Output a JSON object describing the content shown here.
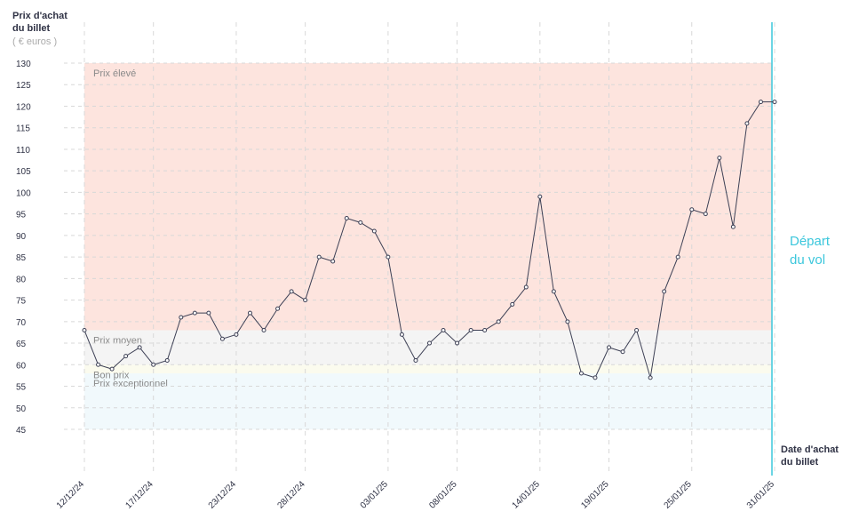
{
  "chart_data": {
    "type": "line",
    "y_title": "Prix d'achat du billet",
    "y_unit": "( € euros )",
    "x_title": "Date d'achat du billet",
    "annotation": "Départ du vol",
    "categories": [
      "12/12/24",
      null,
      null,
      null,
      null,
      "17/12/24",
      null,
      null,
      null,
      null,
      null,
      "23/12/24",
      null,
      null,
      null,
      null,
      "28/12/24",
      null,
      null,
      null,
      null,
      null,
      "03/01/25",
      null,
      null,
      null,
      null,
      "08/01/25",
      null,
      null,
      null,
      null,
      null,
      "14/01/25",
      null,
      null,
      null,
      null,
      "19/01/25",
      null,
      null,
      null,
      null,
      null,
      "25/01/25",
      null,
      null,
      null,
      null,
      null,
      "31/01/25"
    ],
    "values": [
      68,
      60,
      59,
      62,
      64,
      60,
      61,
      71,
      72,
      72,
      66,
      67,
      72,
      68,
      73,
      77,
      75,
      85,
      84,
      94,
      93,
      91,
      85,
      67,
      61,
      65,
      68,
      65,
      68,
      68,
      70,
      74,
      78,
      99,
      77,
      70,
      58,
      57,
      64,
      63,
      68,
      57,
      77,
      85,
      96,
      95,
      108,
      92,
      116,
      121,
      121
    ],
    "color": "#3d4055",
    "ylim": [
      45,
      130
    ],
    "yticks": [
      45,
      50,
      55,
      60,
      65,
      70,
      75,
      80,
      85,
      90,
      95,
      100,
      105,
      110,
      115,
      120,
      125,
      130
    ],
    "grid": true,
    "bands": [
      {
        "label": "Prix élevé",
        "from": 68,
        "to": 130,
        "color": "#fde4de"
      },
      {
        "label": "Prix moyen",
        "from": 60,
        "to": 68,
        "color": "#f4f4f4"
      },
      {
        "label": "Bon prix",
        "from": 58,
        "to": 60,
        "color": "#fbfbee"
      },
      {
        "label": "Prix exceptionnel",
        "from": 45,
        "to": 58,
        "color": "#f1f9fc"
      }
    ]
  }
}
